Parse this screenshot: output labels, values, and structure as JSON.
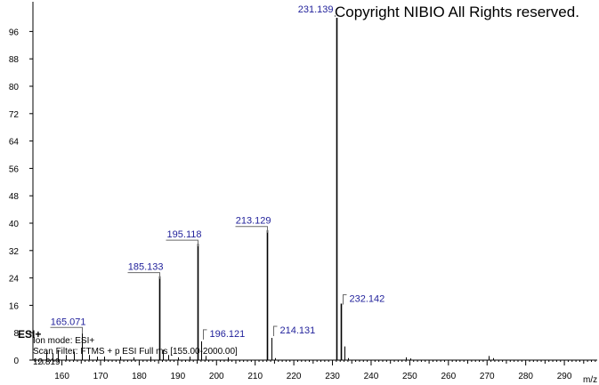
{
  "copyright": "Copyright NIBIO All Rights reserved.",
  "annotations": {
    "ionization": "ESI+",
    "ion_mode": "Ion mode: ESI+",
    "scan_filter": "Scan Filter: FTMS + p ESI Full ms [155.00-2000.00]",
    "retention": "12.819"
  },
  "chart_data": {
    "type": "bar",
    "title": "",
    "xlabel": "m/z",
    "ylabel": "",
    "xlim": [
      152.5,
      298.5
    ],
    "ylim": [
      0,
      100
    ],
    "x_ticks": [
      160,
      170,
      180,
      190,
      200,
      210,
      220,
      230,
      240,
      250,
      260,
      270,
      280,
      290
    ],
    "y_ticks": [
      0,
      8,
      16,
      24,
      32,
      40,
      48,
      56,
      64,
      72,
      80,
      88,
      96
    ],
    "grid": false,
    "peaks": [
      {
        "mz": 156.0,
        "intensity": 2.5
      },
      {
        "mz": 157.5,
        "intensity": 2.0
      },
      {
        "mz": 159.0,
        "intensity": 3.0
      },
      {
        "mz": 161.1,
        "intensity": 1.5
      },
      {
        "mz": 163.0,
        "intensity": 2.5
      },
      {
        "mz": 165.071,
        "intensity": 8.5,
        "label": "165.071"
      },
      {
        "mz": 167.0,
        "intensity": 1.5
      },
      {
        "mz": 169.0,
        "intensity": 1.0
      },
      {
        "mz": 171.0,
        "intensity": 1.0
      },
      {
        "mz": 175.0,
        "intensity": 1.0
      },
      {
        "mz": 178.5,
        "intensity": 0.8
      },
      {
        "mz": 183.0,
        "intensity": 1.0
      },
      {
        "mz": 185.133,
        "intensity": 24.5,
        "label": "185.133"
      },
      {
        "mz": 186.1,
        "intensity": 3.0
      },
      {
        "mz": 187.5,
        "intensity": 1.5
      },
      {
        "mz": 190.0,
        "intensity": 0.8
      },
      {
        "mz": 193.0,
        "intensity": 1.0
      },
      {
        "mz": 195.118,
        "intensity": 34.0,
        "label": "195.118"
      },
      {
        "mz": 196.121,
        "intensity": 5.5,
        "label": "196.121"
      },
      {
        "mz": 197.1,
        "intensity": 1.2
      },
      {
        "mz": 203.0,
        "intensity": 0.8
      },
      {
        "mz": 213.129,
        "intensity": 38.0,
        "label": "213.129"
      },
      {
        "mz": 214.131,
        "intensity": 6.5,
        "label": "214.131"
      },
      {
        "mz": 215.1,
        "intensity": 0.6
      },
      {
        "mz": 231.139,
        "intensity": 100.0,
        "label": "231.139"
      },
      {
        "mz": 232.142,
        "intensity": 16.5,
        "label": "232.142"
      },
      {
        "mz": 233.1,
        "intensity": 4.0
      },
      {
        "mz": 234.1,
        "intensity": 0.6
      },
      {
        "mz": 249.1,
        "intensity": 0.8
      },
      {
        "mz": 250.2,
        "intensity": 0.5
      },
      {
        "mz": 270.5,
        "intensity": 1.2
      },
      {
        "mz": 271.5,
        "intensity": 0.6
      }
    ]
  }
}
